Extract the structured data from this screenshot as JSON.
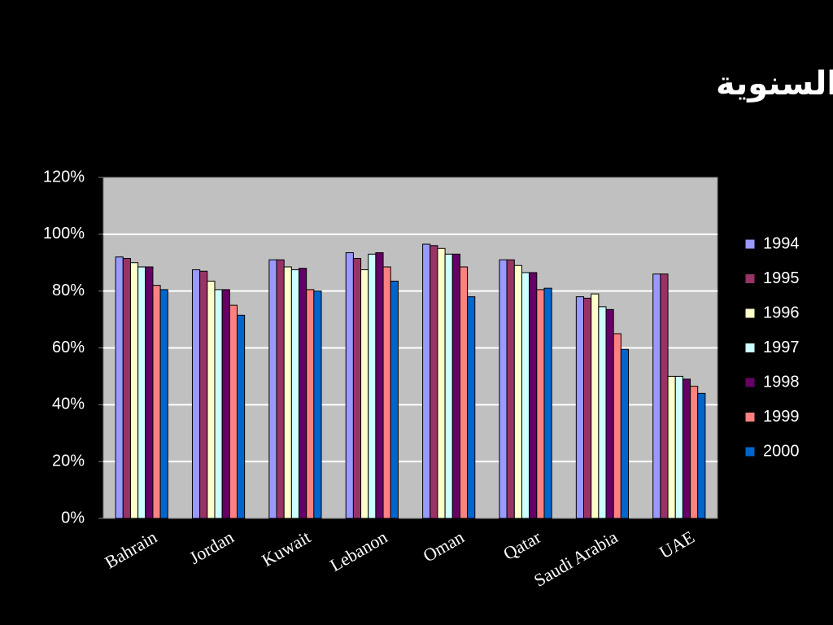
{
  "chart_data": {
    "type": "bar",
    "title": "نسب قرصنة العالم العربي السنوية",
    "categories": [
      "Bahrain",
      "Jordan",
      "Kuwait",
      "Lebanon",
      "Oman",
      "Qatar",
      "Saudi Arabia",
      "UAE"
    ],
    "series": [
      {
        "name": "1994",
        "color": "#9999ff",
        "values": [
          92,
          87.5,
          91,
          93.5,
          96.5,
          91,
          78,
          86
        ]
      },
      {
        "name": "1995",
        "color": "#993366",
        "values": [
          91.5,
          87,
          91,
          91.5,
          96,
          91,
          77.5,
          86
        ]
      },
      {
        "name": "1996",
        "color": "#ffffcc",
        "values": [
          90,
          83.5,
          88.5,
          87.5,
          95,
          89,
          79,
          50
        ]
      },
      {
        "name": "1997",
        "color": "#ccffff",
        "values": [
          88.5,
          80.5,
          87.5,
          93,
          93,
          86.5,
          74.5,
          50
        ]
      },
      {
        "name": "1998",
        "color": "#660066",
        "values": [
          88.5,
          80.5,
          88,
          93.5,
          93,
          86.5,
          73.5,
          49
        ]
      },
      {
        "name": "1999",
        "color": "#ff8080",
        "values": [
          82,
          75,
          80.5,
          88.5,
          88.5,
          80.5,
          65,
          46.5
        ]
      },
      {
        "name": "2000",
        "color": "#0066cc",
        "values": [
          80.5,
          71.5,
          80,
          83.5,
          78,
          81,
          59.5,
          44
        ]
      }
    ],
    "ylim": [
      0,
      120
    ],
    "yticks": [
      {
        "value": 0,
        "label": "0%"
      },
      {
        "value": 20,
        "label": "20%"
      },
      {
        "value": 40,
        "label": "40%"
      },
      {
        "value": 60,
        "label": "60%"
      },
      {
        "value": 80,
        "label": "80%"
      },
      {
        "value": 100,
        "label": "100%"
      },
      {
        "value": 120,
        "label": "120%"
      }
    ],
    "grid": true,
    "legend": "right"
  }
}
